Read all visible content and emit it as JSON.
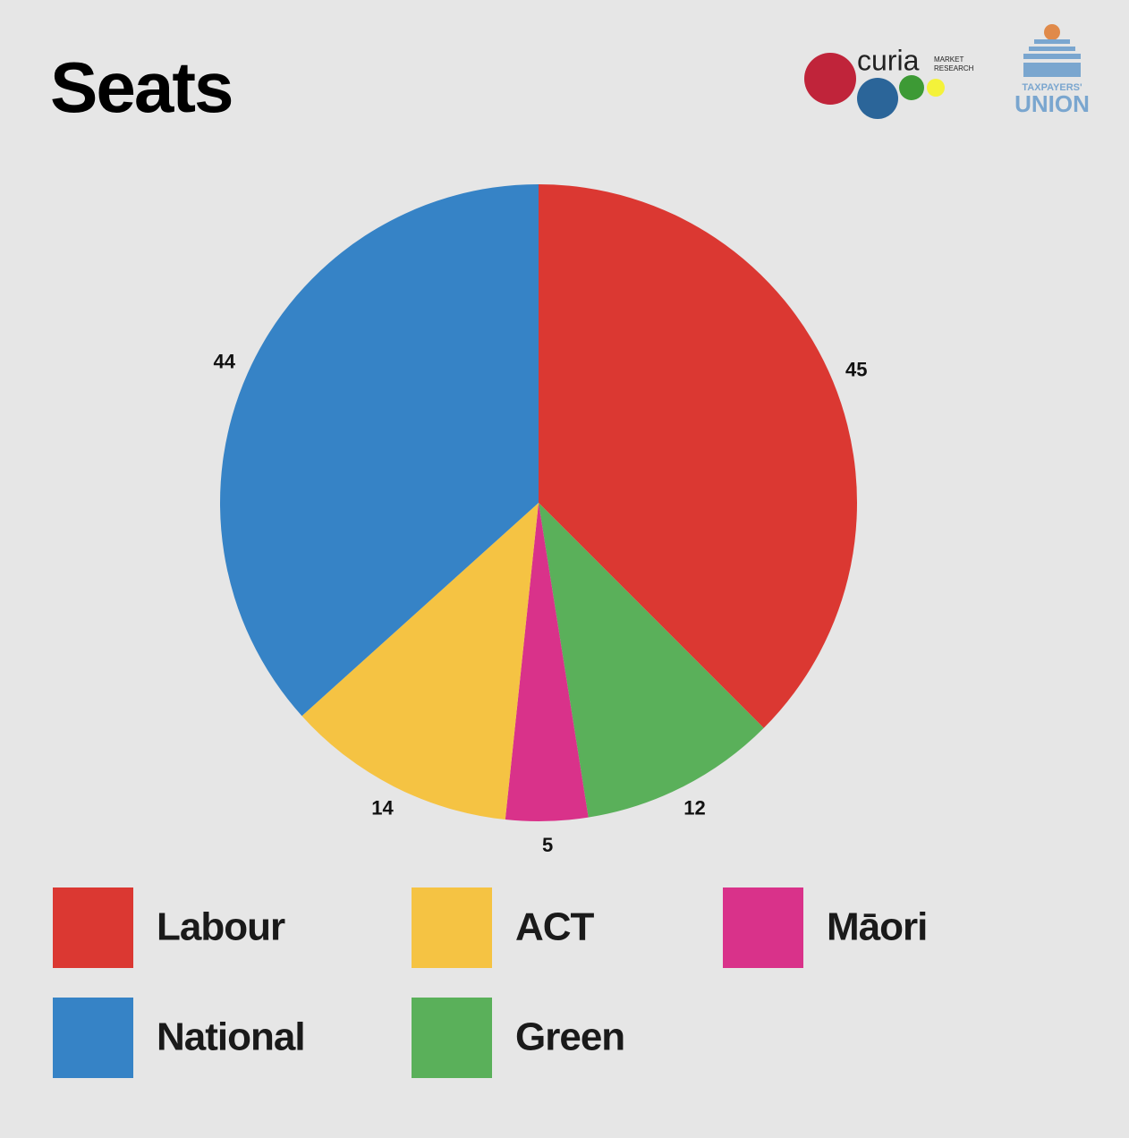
{
  "chart_data": {
    "type": "pie",
    "title": "Seats",
    "categories": [
      "Labour",
      "Green",
      "Māori",
      "ACT",
      "National"
    ],
    "values": [
      45,
      12,
      5,
      14,
      44
    ],
    "colors": [
      "#db3832",
      "#5ab05a",
      "#d9328a",
      "#f5c343",
      "#3683c6"
    ]
  },
  "logos": {
    "curia": {
      "name": "curia",
      "tagline_1": "MARKET",
      "tagline_2": "RESEARCH"
    },
    "taxpayers_union": {
      "line_1": "TAXPAYERS'",
      "line_2": "UNION"
    }
  }
}
